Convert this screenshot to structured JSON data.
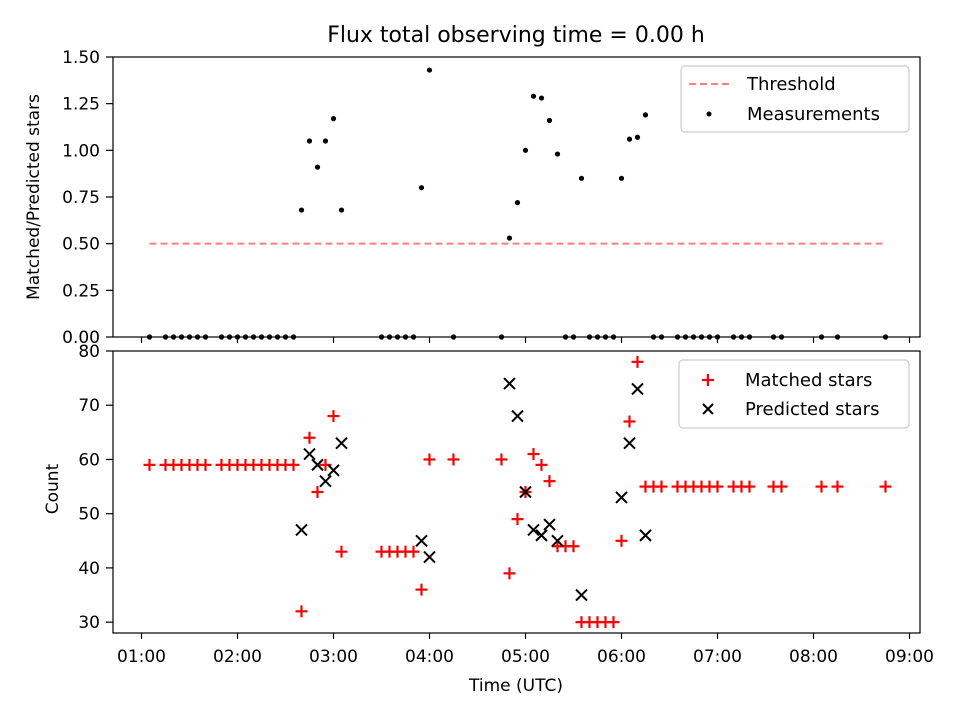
{
  "chart_data": [
    {
      "type": "scatter",
      "title": "Flux total observing time = 0.00 h",
      "xlabel": "",
      "ylabel": "Matched/Predicted stars",
      "ylim": [
        0,
        1.5
      ],
      "yticks": [
        "0.00",
        "0.25",
        "0.50",
        "0.75",
        "1.00",
        "1.25",
        "1.50"
      ],
      "ytick_values": [
        0,
        0.25,
        0.5,
        0.75,
        1.0,
        1.25,
        1.5
      ],
      "legend": "top-right",
      "threshold": {
        "name": "Threshold",
        "value": 0.5,
        "x_range": [
          "01:05",
          "08:45"
        ],
        "color": "#ff7f7f"
      },
      "series": [
        {
          "name": "Measurements",
          "color": "#000000",
          "points": [
            [
              "01:05",
              0
            ],
            [
              "01:15",
              0
            ],
            [
              "01:20",
              0
            ],
            [
              "01:25",
              0
            ],
            [
              "01:30",
              0
            ],
            [
              "01:35",
              0
            ],
            [
              "01:40",
              0
            ],
            [
              "01:50",
              0
            ],
            [
              "01:55",
              0
            ],
            [
              "02:00",
              0
            ],
            [
              "02:05",
              0
            ],
            [
              "02:10",
              0
            ],
            [
              "02:15",
              0
            ],
            [
              "02:20",
              0
            ],
            [
              "02:25",
              0
            ],
            [
              "02:30",
              0
            ],
            [
              "02:35",
              0
            ],
            [
              "02:40",
              0.68
            ],
            [
              "02:45",
              1.05
            ],
            [
              "02:50",
              0.91
            ],
            [
              "02:55",
              1.05
            ],
            [
              "03:00",
              1.17
            ],
            [
              "03:05",
              0.68
            ],
            [
              "03:30",
              0
            ],
            [
              "03:35",
              0
            ],
            [
              "03:40",
              0
            ],
            [
              "03:45",
              0
            ],
            [
              "03:50",
              0
            ],
            [
              "03:55",
              0.8
            ],
            [
              "04:00",
              1.43
            ],
            [
              "04:15",
              0
            ],
            [
              "04:45",
              0
            ],
            [
              "04:50",
              0.53
            ],
            [
              "04:55",
              0.72
            ],
            [
              "05:00",
              1.0
            ],
            [
              "05:05",
              1.29
            ],
            [
              "05:10",
              1.28
            ],
            [
              "05:15",
              1.16
            ],
            [
              "05:20",
              0.98
            ],
            [
              "05:25",
              0
            ],
            [
              "05:30",
              0
            ],
            [
              "05:35",
              0.85
            ],
            [
              "05:40",
              0
            ],
            [
              "05:45",
              0
            ],
            [
              "05:50",
              0
            ],
            [
              "05:55",
              0
            ],
            [
              "06:00",
              0.85
            ],
            [
              "06:05",
              1.06
            ],
            [
              "06:10",
              1.07
            ],
            [
              "06:15",
              1.19
            ],
            [
              "06:20",
              0
            ],
            [
              "06:25",
              0
            ],
            [
              "06:35",
              0
            ],
            [
              "06:40",
              0
            ],
            [
              "06:45",
              0
            ],
            [
              "06:50",
              0
            ],
            [
              "06:55",
              0
            ],
            [
              "07:00",
              0
            ],
            [
              "07:10",
              0
            ],
            [
              "07:15",
              0
            ],
            [
              "07:20",
              0
            ],
            [
              "07:35",
              0
            ],
            [
              "07:40",
              0
            ],
            [
              "08:05",
              0
            ],
            [
              "08:15",
              0
            ],
            [
              "08:45",
              0
            ]
          ]
        }
      ]
    },
    {
      "type": "scatter",
      "title": "",
      "xlabel": "Time (UTC)",
      "ylabel": "Count",
      "ylim": [
        28,
        80
      ],
      "yticks": [
        "30",
        "40",
        "50",
        "60",
        "70",
        "80"
      ],
      "ytick_values": [
        30,
        40,
        50,
        60,
        70,
        80
      ],
      "xticks": [
        "01:00",
        "02:00",
        "03:00",
        "04:00",
        "05:00",
        "06:00",
        "07:00",
        "08:00",
        "09:00"
      ],
      "legend": "top-right",
      "series": [
        {
          "name": "Matched stars",
          "color": "#ff0000",
          "marker": "+",
          "points": [
            [
              "01:05",
              59
            ],
            [
              "01:15",
              59
            ],
            [
              "01:20",
              59
            ],
            [
              "01:25",
              59
            ],
            [
              "01:30",
              59
            ],
            [
              "01:35",
              59
            ],
            [
              "01:40",
              59
            ],
            [
              "01:50",
              59
            ],
            [
              "01:55",
              59
            ],
            [
              "02:00",
              59
            ],
            [
              "02:05",
              59
            ],
            [
              "02:10",
              59
            ],
            [
              "02:15",
              59
            ],
            [
              "02:20",
              59
            ],
            [
              "02:25",
              59
            ],
            [
              "02:30",
              59
            ],
            [
              "02:35",
              59
            ],
            [
              "02:40",
              32
            ],
            [
              "02:45",
              64
            ],
            [
              "02:50",
              54
            ],
            [
              "02:55",
              59
            ],
            [
              "03:00",
              68
            ],
            [
              "03:05",
              43
            ],
            [
              "03:30",
              43
            ],
            [
              "03:35",
              43
            ],
            [
              "03:40",
              43
            ],
            [
              "03:45",
              43
            ],
            [
              "03:50",
              43
            ],
            [
              "03:55",
              36
            ],
            [
              "04:00",
              60
            ],
            [
              "04:15",
              60
            ],
            [
              "04:45",
              60
            ],
            [
              "04:50",
              39
            ],
            [
              "04:55",
              49
            ],
            [
              "05:00",
              54
            ],
            [
              "05:05",
              61
            ],
            [
              "05:10",
              59
            ],
            [
              "05:15",
              56
            ],
            [
              "05:20",
              44
            ],
            [
              "05:25",
              44
            ],
            [
              "05:30",
              44
            ],
            [
              "05:35",
              30
            ],
            [
              "05:40",
              30
            ],
            [
              "05:45",
              30
            ],
            [
              "05:50",
              30
            ],
            [
              "05:55",
              30
            ],
            [
              "06:00",
              45
            ],
            [
              "06:05",
              67
            ],
            [
              "06:10",
              78
            ],
            [
              "06:15",
              55
            ],
            [
              "06:20",
              55
            ],
            [
              "06:25",
              55
            ],
            [
              "06:35",
              55
            ],
            [
              "06:40",
              55
            ],
            [
              "06:45",
              55
            ],
            [
              "06:50",
              55
            ],
            [
              "06:55",
              55
            ],
            [
              "07:00",
              55
            ],
            [
              "07:10",
              55
            ],
            [
              "07:15",
              55
            ],
            [
              "07:20",
              55
            ],
            [
              "07:35",
              55
            ],
            [
              "07:40",
              55
            ],
            [
              "08:05",
              55
            ],
            [
              "08:15",
              55
            ],
            [
              "08:45",
              55
            ]
          ]
        },
        {
          "name": "Predicted stars",
          "color": "#000000",
          "marker": "x",
          "points": [
            [
              "02:40",
              47
            ],
            [
              "02:45",
              61
            ],
            [
              "02:50",
              59
            ],
            [
              "02:55",
              56
            ],
            [
              "03:00",
              58
            ],
            [
              "03:05",
              63
            ],
            [
              "03:55",
              45
            ],
            [
              "04:00",
              42
            ],
            [
              "04:50",
              74
            ],
            [
              "04:55",
              68
            ],
            [
              "05:00",
              54
            ],
            [
              "05:05",
              47
            ],
            [
              "05:10",
              46
            ],
            [
              "05:15",
              48
            ],
            [
              "05:20",
              45
            ],
            [
              "05:35",
              35
            ],
            [
              "06:00",
              53
            ],
            [
              "06:05",
              63
            ],
            [
              "06:10",
              73
            ],
            [
              "06:15",
              46
            ]
          ]
        }
      ]
    }
  ]
}
